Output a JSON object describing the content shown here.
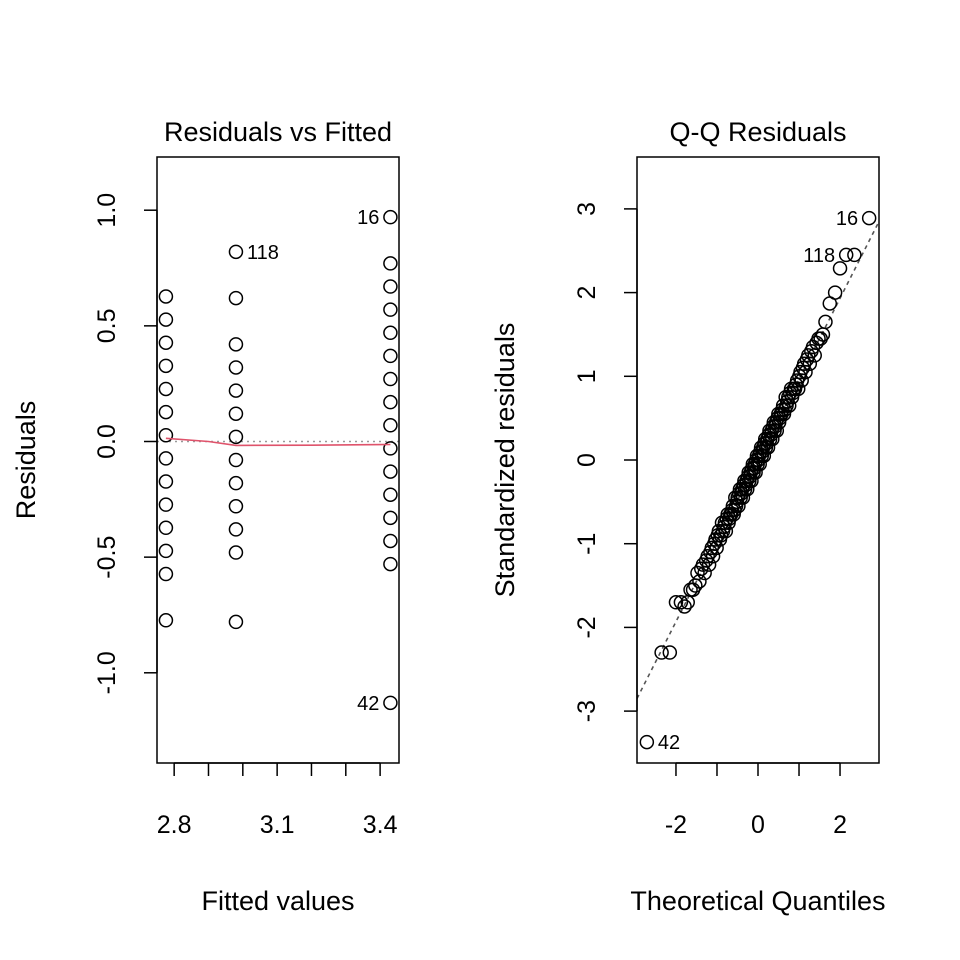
{
  "chart_data": [
    {
      "type": "scatter",
      "title": "Residuals vs Fitted",
      "xlabel": "Fitted values",
      "ylabel": "Residuals",
      "xlim": [
        2.75,
        3.455
      ],
      "ylim": [
        -1.39,
        1.23
      ],
      "x_ticks": [
        2.8,
        2.9,
        3.0,
        3.1,
        3.2,
        3.3,
        3.4
      ],
      "x_tick_labels": [
        "2.8",
        "",
        "",
        "3.1",
        "",
        "",
        "3.4"
      ],
      "y_ticks": [
        -1.0,
        -0.5,
        0.0,
        0.5,
        1.0
      ],
      "y_tick_labels": [
        "-1.0",
        "-0.5",
        "0.0",
        "0.5",
        "1.0"
      ],
      "groups": [
        {
          "x": 2.776,
          "residuals": [
            0.627,
            0.527,
            0.427,
            0.327,
            0.227,
            0.127,
            0.027,
            -0.073,
            -0.173,
            -0.273,
            -0.373,
            -0.473,
            -0.573,
            -0.773
          ]
        },
        {
          "x": 2.98,
          "residuals": [
            0.82,
            0.62,
            0.42,
            0.32,
            0.22,
            0.12,
            0.02,
            -0.08,
            -0.18,
            -0.28,
            -0.38,
            -0.48,
            -0.78
          ]
        },
        {
          "x": 3.43,
          "residuals": [
            0.97,
            0.77,
            0.67,
            0.57,
            0.47,
            0.37,
            0.27,
            0.17,
            0.07,
            -0.03,
            -0.13,
            -0.23,
            -0.33,
            -0.43,
            -0.53,
            -1.13
          ]
        }
      ],
      "smoother": {
        "x": [
          2.776,
          2.9,
          2.98,
          3.2,
          3.43
        ],
        "y": [
          0.014,
          0.0,
          -0.017,
          -0.016,
          -0.013
        ],
        "color": "#DF536B"
      },
      "reference_line": {
        "y": 0,
        "color": "#999999",
        "style": "dotted"
      },
      "point_labels": [
        {
          "text": "16",
          "x": 3.43,
          "y": 0.97,
          "side": "left"
        },
        {
          "text": "118",
          "x": 2.98,
          "y": 0.82,
          "side": "right"
        },
        {
          "text": "42",
          "x": 3.43,
          "y": -1.13,
          "side": "left"
        }
      ]
    },
    {
      "type": "scatter",
      "title": "Q-Q Residuals",
      "xlabel": "Theoretical Quantiles",
      "ylabel": "Standardized residuals",
      "xlim": [
        -2.95,
        2.95
      ],
      "ylim": [
        -3.62,
        3.62
      ],
      "x_ticks": [
        -2,
        -1,
        0,
        1,
        2
      ],
      "x_tick_labels": [
        "-2",
        "",
        "0",
        "",
        "2"
      ],
      "y_ticks": [
        -3,
        -2,
        -1,
        0,
        1,
        2,
        3
      ],
      "y_tick_labels": [
        "-3",
        "-2",
        "-1",
        "0",
        "1",
        "2",
        "3"
      ],
      "n_points": 150,
      "slope": 0.966,
      "intercept": 0.0,
      "tail_points": [
        {
          "x": -2.71,
          "y": -3.37
        },
        {
          "x": -2.35,
          "y": -2.3
        },
        {
          "x": -2.15,
          "y": -2.3
        },
        {
          "x": -2.0,
          "y": -1.7
        },
        {
          "x": -1.88,
          "y": -1.7
        },
        {
          "x": 1.75,
          "y": 1.87
        },
        {
          "x": 1.88,
          "y": 2.0
        },
        {
          "x": 2.0,
          "y": 2.29
        },
        {
          "x": 2.15,
          "y": 2.45
        },
        {
          "x": 2.35,
          "y": 2.45
        },
        {
          "x": 2.71,
          "y": 2.89
        }
      ],
      "reference_line": {
        "slope": 0.966,
        "intercept": 0.0,
        "color": "#555555",
        "style": "dashed"
      },
      "point_labels": [
        {
          "text": "16",
          "x": 2.71,
          "y": 2.89,
          "side": "left"
        },
        {
          "text": "118",
          "x": 2.15,
          "y": 2.45,
          "side": "left"
        },
        {
          "text": "42",
          "x": -2.71,
          "y": -3.37,
          "side": "right"
        }
      ]
    }
  ]
}
